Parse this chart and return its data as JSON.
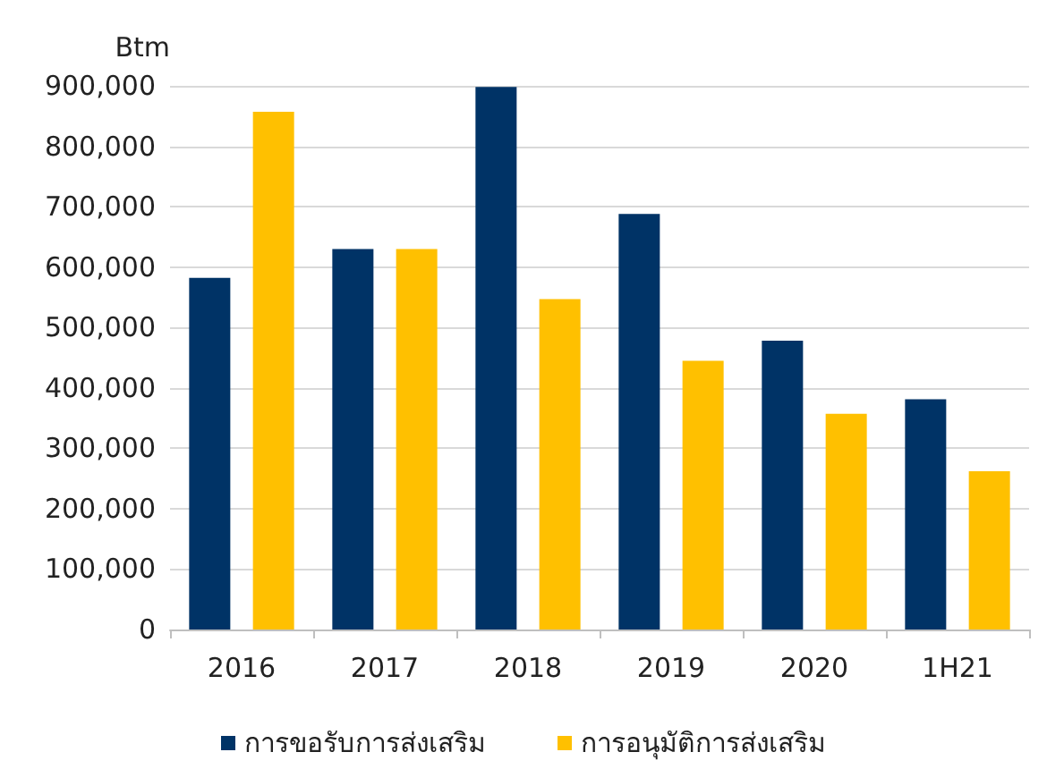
{
  "chart_data": {
    "type": "bar",
    "ylabel": "Btm",
    "categories": [
      "2016",
      "2017",
      "2018",
      "2019",
      "2020",
      "1H21"
    ],
    "series": [
      {
        "name": "การขอรับการส่งเสริม",
        "color": "#003366",
        "values": [
          582000,
          630000,
          898000,
          688000,
          478000,
          381000
        ]
      },
      {
        "name": "การอนุมัติการส่งเสริม",
        "color": "#ffc000",
        "values": [
          857000,
          630000,
          547000,
          445000,
          357000,
          262000
        ]
      }
    ],
    "ylim": [
      0,
      900000
    ],
    "yticks": [
      0,
      {
        "value": 100000,
        "label": "100,000"
      },
      {
        "value": 200000,
        "label": "200,000"
      },
      {
        "value": 300000,
        "label": "300,000"
      },
      {
        "value": 400000,
        "label": "400,000"
      },
      {
        "value": 500000,
        "label": "500,000"
      },
      {
        "value": 600000,
        "label": "600,000"
      },
      {
        "value": 700000,
        "label": "700,000"
      },
      {
        "value": 800000,
        "label": "800,000"
      },
      {
        "value": 900000,
        "label": "900,000"
      }
    ],
    "grid": "y",
    "legend": "bottom"
  }
}
